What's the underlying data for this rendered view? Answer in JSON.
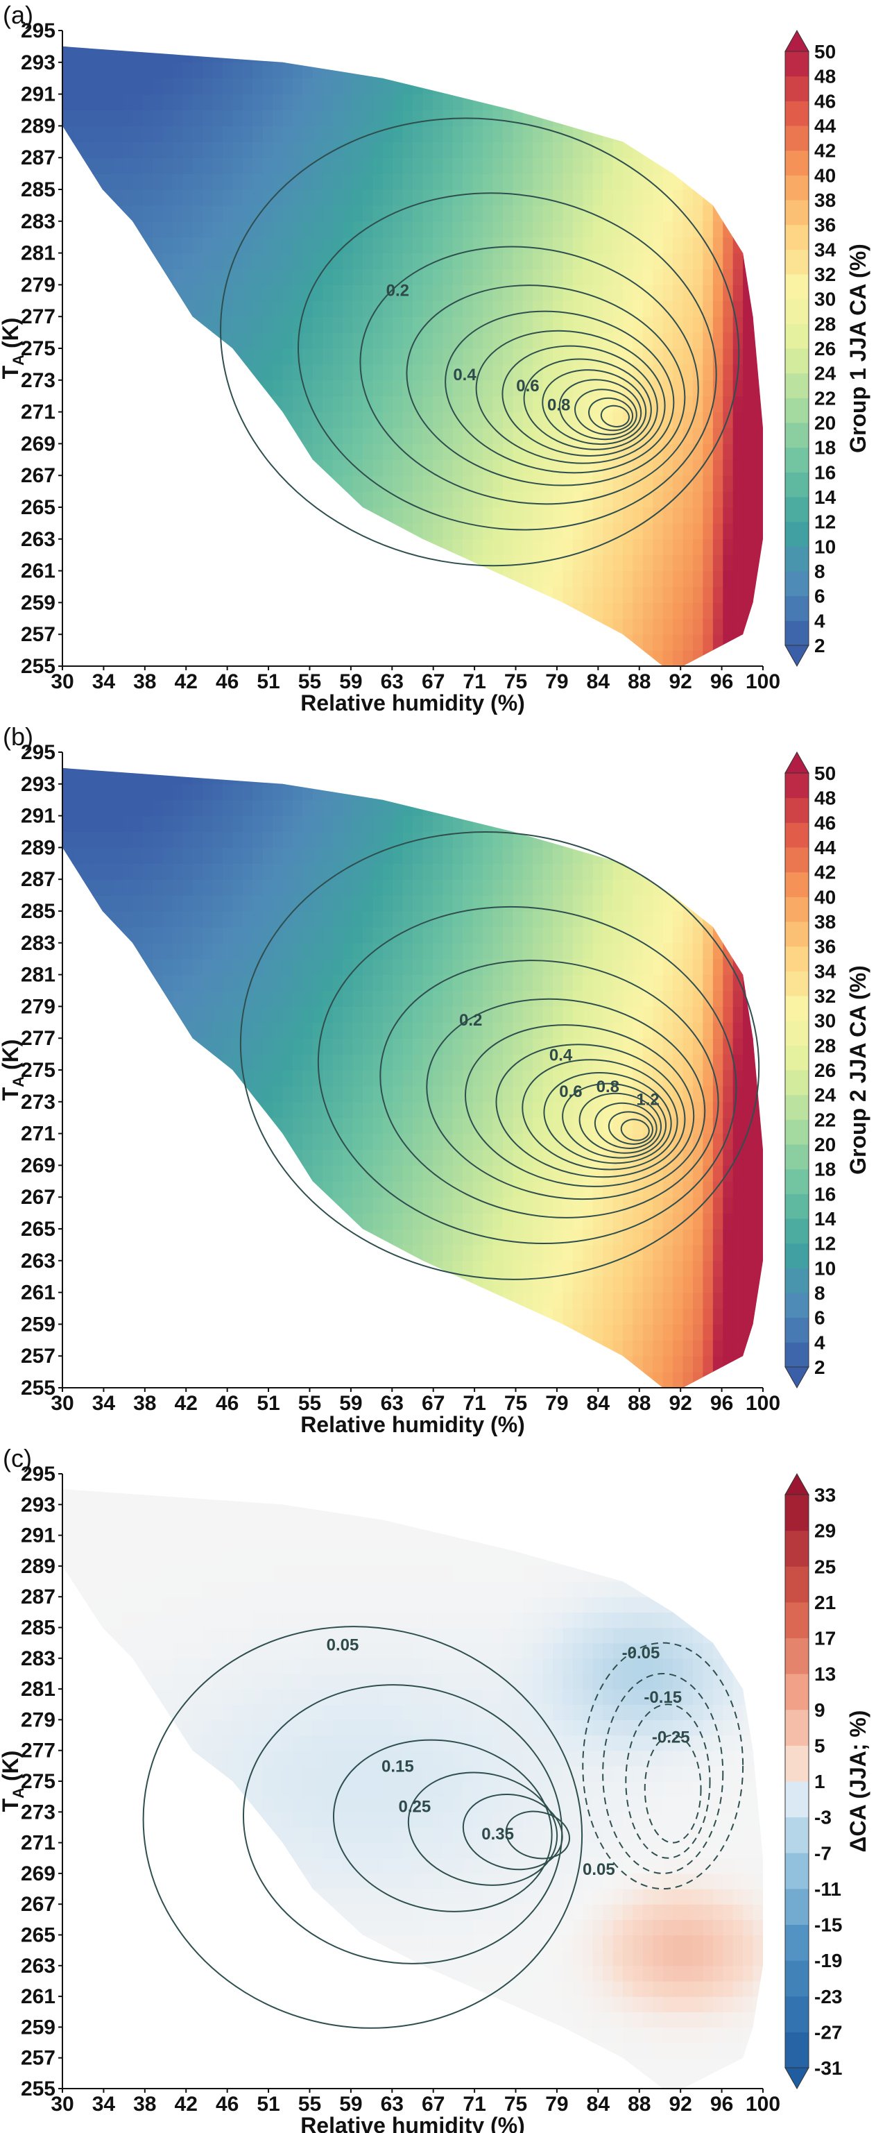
{
  "chart_data": [
    {
      "panel": "(a)",
      "type": "heatmap",
      "xlabel": "Relative humidity (%)",
      "ylabel": "T",
      "ylabel_sub": "A",
      "ylabel_unit": " (K)",
      "x_ticks": [
        "30",
        "34",
        "38",
        "42",
        "46",
        "51",
        "55",
        "59",
        "63",
        "67",
        "71",
        "75",
        "79",
        "84",
        "88",
        "92",
        "96",
        "100"
      ],
      "y_ticks": [
        "255",
        "257",
        "259",
        "261",
        "263",
        "265",
        "267",
        "269",
        "271",
        "273",
        "275",
        "277",
        "279",
        "281",
        "283",
        "285",
        "287",
        "289",
        "291",
        "293",
        "295"
      ],
      "xlim": [
        30,
        100
      ],
      "ylim": [
        255,
        295
      ],
      "colorbar_label": "Group 1 JJA CA (%)",
      "colorbar_ticks": [
        "2",
        "4",
        "6",
        "8",
        "10",
        "12",
        "14",
        "16",
        "18",
        "20",
        "22",
        "24",
        "26",
        "28",
        "30",
        "32",
        "34",
        "36",
        "38",
        "40",
        "42",
        "44",
        "46",
        "48",
        "50"
      ],
      "colorbar_range": [
        2,
        50
      ],
      "contour_labels": [
        {
          "text": "0.2",
          "x": 63.5,
          "y": 278.3
        },
        {
          "text": "0.4",
          "x": 70.2,
          "y": 273.0
        },
        {
          "text": "0.6",
          "x": 76.5,
          "y": 272.3
        },
        {
          "text": "0.8",
          "x": 79.6,
          "y": 271.1
        }
      ]
    },
    {
      "panel": "(b)",
      "type": "heatmap",
      "xlabel": "Relative humidity (%)",
      "ylabel": "T",
      "ylabel_sub": "A",
      "ylabel_unit": " (K)",
      "x_ticks": [
        "30",
        "34",
        "38",
        "42",
        "46",
        "51",
        "55",
        "59",
        "63",
        "67",
        "71",
        "75",
        "79",
        "84",
        "88",
        "92",
        "96",
        "100"
      ],
      "y_ticks": [
        "255",
        "257",
        "259",
        "261",
        "263",
        "265",
        "267",
        "269",
        "271",
        "273",
        "275",
        "277",
        "279",
        "281",
        "283",
        "285",
        "287",
        "289",
        "291",
        "293",
        "295"
      ],
      "xlim": [
        30,
        100
      ],
      "ylim": [
        255,
        295
      ],
      "colorbar_label": "Group 2 JJA CA (%)",
      "colorbar_ticks": [
        "2",
        "4",
        "6",
        "8",
        "10",
        "12",
        "14",
        "16",
        "18",
        "20",
        "22",
        "24",
        "26",
        "28",
        "30",
        "32",
        "34",
        "36",
        "38",
        "40",
        "42",
        "44",
        "46",
        "48",
        "50"
      ],
      "colorbar_range": [
        2,
        50
      ],
      "contour_labels": [
        {
          "text": "0.2",
          "x": 70.8,
          "y": 277.8
        },
        {
          "text": "0.4",
          "x": 79.8,
          "y": 275.6
        },
        {
          "text": "0.6",
          "x": 80.8,
          "y": 273.3
        },
        {
          "text": "0.8",
          "x": 84.5,
          "y": 273.6
        },
        {
          "text": "1.2",
          "x": 88.5,
          "y": 272.8
        }
      ]
    },
    {
      "panel": "(c)",
      "type": "heatmap",
      "xlabel": "Relative humidity (%)",
      "ylabel": "T",
      "ylabel_sub": "A",
      "ylabel_unit": " (K)",
      "x_ticks": [
        "30",
        "34",
        "38",
        "42",
        "46",
        "51",
        "55",
        "59",
        "63",
        "67",
        "71",
        "75",
        "79",
        "84",
        "88",
        "92",
        "96",
        "100"
      ],
      "y_ticks": [
        "255",
        "257",
        "259",
        "261",
        "263",
        "265",
        "267",
        "269",
        "271",
        "273",
        "275",
        "277",
        "279",
        "281",
        "283",
        "285",
        "287",
        "289",
        "291",
        "293",
        "295"
      ],
      "xlim": [
        30,
        100
      ],
      "ylim": [
        255,
        295
      ],
      "colorbar_label": "ΔCA (JJA; %)",
      "colorbar_ticks": [
        "-31",
        "-27",
        "-23",
        "-19",
        "-15",
        "-11",
        "-7",
        "-3",
        "1",
        "5",
        "9",
        "13",
        "17",
        "21",
        "25",
        "29",
        "33"
      ],
      "colorbar_range": [
        -31,
        33
      ],
      "contour_labels": [
        {
          "text": "0.05",
          "x": 58.0,
          "y": 283.5
        },
        {
          "text": "0.15",
          "x": 63.5,
          "y": 275.6
        },
        {
          "text": "0.25",
          "x": 65.2,
          "y": 273.0
        },
        {
          "text": "0.35",
          "x": 73.5,
          "y": 271.2
        },
        {
          "text": "0.05",
          "x": 83.6,
          "y": 268.9
        },
        {
          "text": "-0.05",
          "x": 87.8,
          "y": 283.0
        },
        {
          "text": "-0.15",
          "x": 90.0,
          "y": 280.1
        },
        {
          "text": "-0.25",
          "x": 90.8,
          "y": 277.5
        }
      ]
    }
  ]
}
